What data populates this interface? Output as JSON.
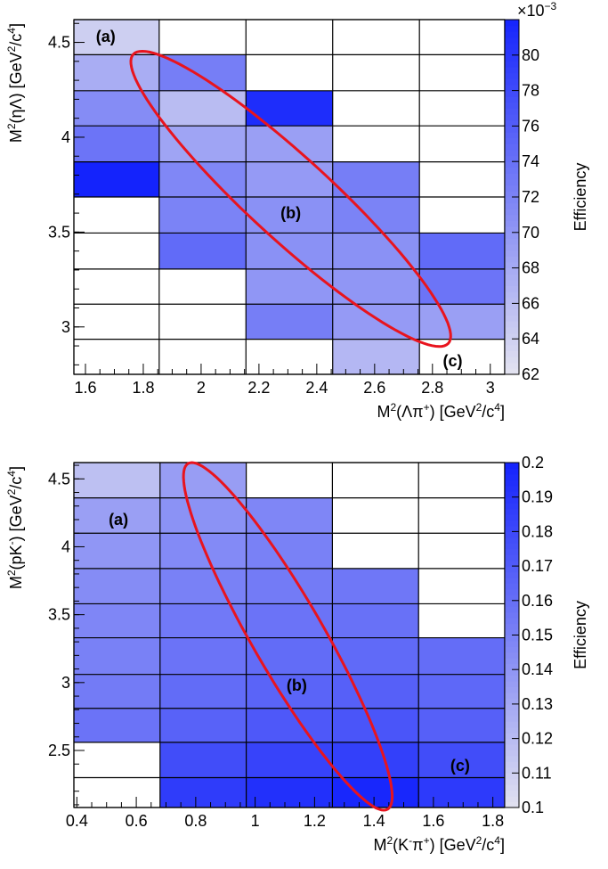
{
  "chart_data": [
    {
      "type": "heatmap",
      "xlabel_parts": [
        "M",
        "2",
        "(Λπ",
        "+",
        ") [GeV",
        "2",
        "/c",
        "4",
        "]"
      ],
      "ylabel_parts": [
        "M",
        "2",
        "(ηΛ) [GeV",
        "2",
        "/c",
        "4",
        "]"
      ],
      "zlabel": "Efficiency",
      "z_multiplier": "×10",
      "z_multiplier_exp": "−3",
      "xlim": [
        1.56,
        3.05
      ],
      "ylim": [
        2.75,
        4.62
      ],
      "x_ticks": [
        "1.6",
        "1.8",
        "2",
        "2.2",
        "2.4",
        "2.6",
        "2.8",
        "3"
      ],
      "x_tick_values": [
        1.6,
        1.8,
        2.0,
        2.2,
        2.4,
        2.6,
        2.8,
        3.0
      ],
      "y_ticks": [
        "3",
        "3.5",
        "4",
        "4.5"
      ],
      "y_tick_values": [
        3.0,
        3.5,
        4.0,
        4.5
      ],
      "z_ticks": [
        "62",
        "64",
        "66",
        "68",
        "70",
        "72",
        "74",
        "76",
        "78",
        "80"
      ],
      "z_tick_values": [
        62,
        64,
        66,
        68,
        70,
        72,
        74,
        76,
        78,
        80
      ],
      "zlim": [
        62,
        82
      ],
      "x_edges": [
        1.56,
        1.855,
        2.155,
        2.455,
        2.755,
        3.05
      ],
      "y_edges": [
        2.75,
        2.935,
        3.12,
        3.305,
        3.495,
        3.685,
        3.87,
        4.06,
        4.245,
        4.435,
        4.62
      ],
      "cells": [
        [
          null,
          null,
          null,
          66.5,
          null
        ],
        [
          null,
          null,
          72.5,
          69.5,
          69.0
        ],
        [
          null,
          null,
          70.0,
          70.0,
          73.5
        ],
        [
          null,
          74.5,
          70.5,
          70.5,
          74.5
        ],
        [
          null,
          72.0,
          70.5,
          72.0,
          null
        ],
        [
          82.0,
          71.5,
          69.5,
          72.5,
          null
        ],
        [
          73.5,
          68.5,
          69.0,
          null,
          null
        ],
        [
          71.0,
          66.0,
          81.0,
          null,
          null
        ],
        [
          67.5,
          72.5,
          null,
          null,
          null
        ],
        [
          64.0,
          null,
          null,
          null,
          null
        ]
      ],
      "annotations": [
        {
          "text": "(a)",
          "x": 1.67,
          "y": 4.53
        },
        {
          "text": "(b)",
          "x": 2.31,
          "y": 3.6
        },
        {
          "text": "(c)",
          "x": 2.87,
          "y": 2.82
        }
      ],
      "ellipse": {
        "cx": 2.31,
        "cy": 3.675,
        "rx": 1.2,
        "ry": 0.23,
        "angle_deg": -42.5,
        "color": "#e8141e"
      }
    },
    {
      "type": "heatmap",
      "xlabel_parts": [
        "M",
        "2",
        "(K",
        "-",
        "π",
        "+",
        ") [GeV",
        "2",
        "/c",
        "4",
        "]"
      ],
      "ylabel_parts": [
        "M",
        "2",
        "(pK",
        "-",
        ") [GeV",
        "2",
        "/c",
        "4",
        "]"
      ],
      "zlabel": "Efficiency",
      "xlim": [
        0.39,
        1.84
      ],
      "ylim": [
        2.08,
        4.62
      ],
      "x_ticks": [
        "0.4",
        "0.6",
        "0.8",
        "1",
        "1.2",
        "1.4",
        "1.6",
        "1.8"
      ],
      "x_tick_values": [
        0.4,
        0.6,
        0.8,
        1.0,
        1.2,
        1.4,
        1.6,
        1.8
      ],
      "y_ticks": [
        "2.5",
        "3",
        "3.5",
        "4",
        "4.5"
      ],
      "y_tick_values": [
        2.5,
        3.0,
        3.5,
        4.0,
        4.5
      ],
      "z_ticks": [
        "0.1",
        "0.11",
        "0.12",
        "0.13",
        "0.14",
        "0.15",
        "0.16",
        "0.17",
        "0.18",
        "0.19",
        "0.2"
      ],
      "z_tick_values": [
        0.1,
        0.11,
        0.12,
        0.13,
        0.14,
        0.15,
        0.16,
        0.17,
        0.18,
        0.19,
        0.2
      ],
      "zlim": [
        0.1,
        0.2
      ],
      "x_edges": [
        0.39,
        0.68,
        0.97,
        1.26,
        1.55,
        1.84
      ],
      "y_edges": [
        2.08,
        2.3,
        2.56,
        2.81,
        3.06,
        3.33,
        3.58,
        3.84,
        4.1,
        4.36,
        4.62
      ],
      "cells": [
        [
          null,
          0.187,
          0.193,
          0.198,
          0.188
        ],
        [
          null,
          0.178,
          0.183,
          0.185,
          0.178
        ],
        [
          0.158,
          0.167,
          0.172,
          0.174,
          0.168
        ],
        [
          0.154,
          0.162,
          0.166,
          0.168,
          0.164
        ],
        [
          0.151,
          0.158,
          0.162,
          0.163,
          0.161
        ],
        [
          0.148,
          0.155,
          0.158,
          0.159,
          null
        ],
        [
          0.145,
          0.151,
          0.154,
          0.156,
          null
        ],
        [
          0.14,
          0.146,
          0.151,
          null,
          null
        ],
        [
          0.135,
          0.142,
          0.148,
          null,
          null
        ],
        [
          0.118,
          0.136,
          null,
          null,
          null
        ]
      ],
      "annotations": [
        {
          "text": "(a)",
          "x": 0.54,
          "y": 4.2
        },
        {
          "text": "(b)",
          "x": 1.14,
          "y": 2.98
        },
        {
          "text": "(c)",
          "x": 1.69,
          "y": 2.39
        }
      ],
      "ellipse": {
        "cx": 1.11,
        "cy": 3.34,
        "rx": 1.12,
        "ry": 0.2,
        "angle_deg": -60,
        "color": "#e8141e"
      }
    }
  ]
}
